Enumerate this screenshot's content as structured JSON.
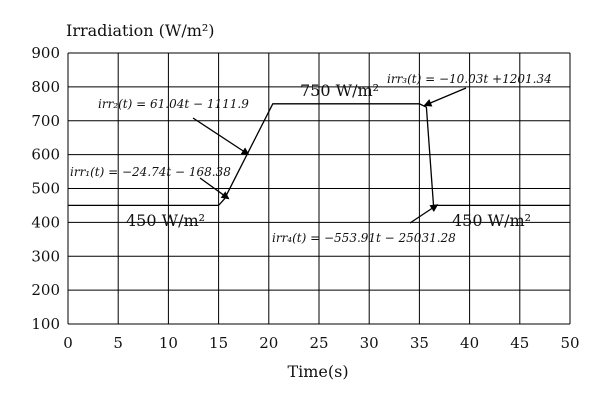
{
  "chart_data": {
    "type": "line",
    "title": "",
    "ylabel": "Irradiation (W/m²)",
    "xlabel": "Time(s)",
    "xlim": [
      0,
      50
    ],
    "ylim": [
      100,
      900
    ],
    "xticks": [
      0,
      5,
      10,
      15,
      20,
      25,
      30,
      35,
      40,
      45,
      50
    ],
    "yticks": [
      100,
      200,
      300,
      400,
      500,
      600,
      700,
      800,
      900
    ],
    "grid": true,
    "series": [
      {
        "name": "",
        "x": [
          0,
          15,
          15.6,
          20.4,
          35,
          35.7,
          36.4,
          37.2,
          50
        ],
        "y": [
          450,
          450,
          470,
          750,
          750,
          740,
          450,
          450,
          450
        ]
      }
    ],
    "annotations": [
      {
        "text": "irr₂(t) = 61.04t − 1111.9",
        "style": "small",
        "arrow_to": [
          18,
          600
        ]
      },
      {
        "text": "irr₁(t) = −24.74t − 168.38",
        "style": "small",
        "arrow_to": [
          16,
          470
        ]
      },
      {
        "text": "750 W/m²",
        "style": "big"
      },
      {
        "text": "irr₃(t) = −10.03t +1201.34",
        "style": "small",
        "arrow_to": [
          35.5,
          745
        ]
      },
      {
        "text": "450 W/m²",
        "style": "big"
      },
      {
        "text": "irr₄(t) = −553.91t − 25031.28",
        "style": "small",
        "arrow_to": [
          36.8,
          452
        ]
      },
      {
        "text": "450 W/m²",
        "style": "big"
      }
    ]
  }
}
